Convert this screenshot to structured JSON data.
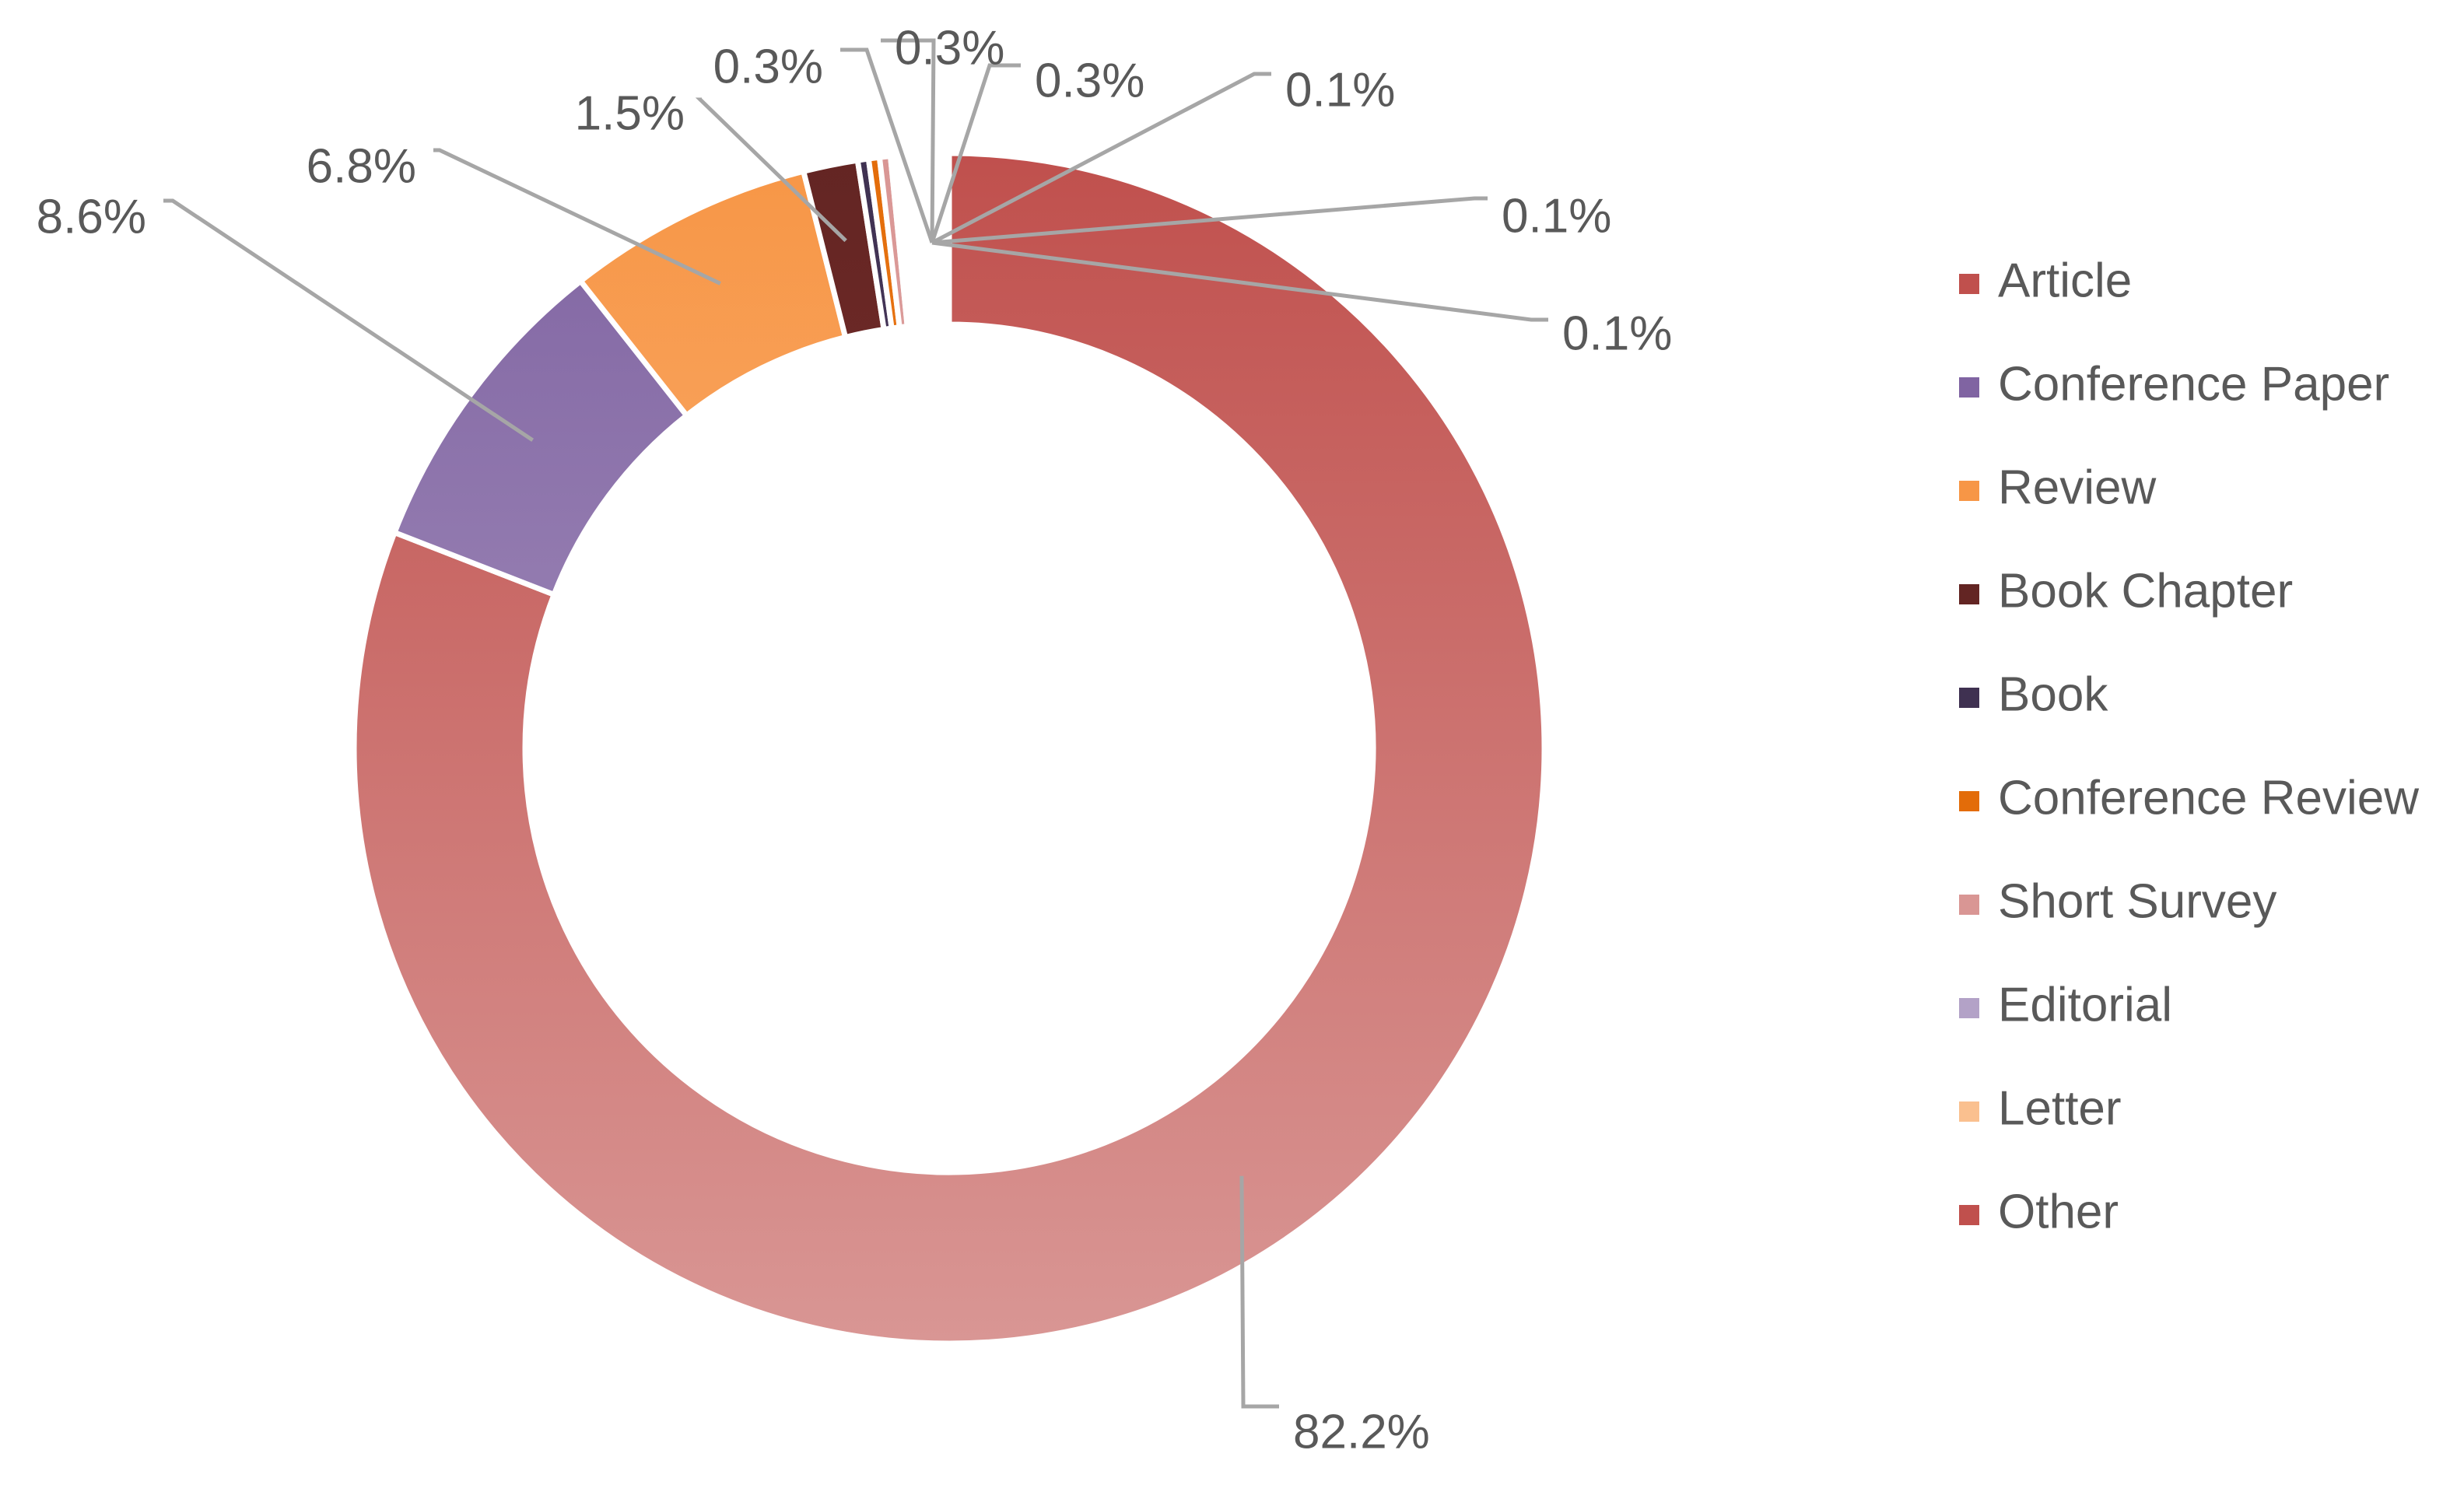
{
  "chart_data": {
    "type": "pie",
    "variant": "donut",
    "title": "",
    "categories": [
      "Article",
      "Conference Paper",
      "Review",
      "Book Chapter",
      "Book",
      "Conference Review",
      "Short Survey",
      "Editorial",
      "Letter",
      "Other"
    ],
    "slices": [
      {
        "name": "Article",
        "value": 82.2,
        "label": "82.2%",
        "color_top": "#c0504d",
        "color_bottom": "#d99694"
      },
      {
        "name": "Conference Paper",
        "value": 8.6,
        "label": "8.6%",
        "color_top": "#8064a2",
        "color_bottom": "#b3a2c7"
      },
      {
        "name": "Review",
        "value": 6.8,
        "label": "6.8%",
        "color_top": "#f79646",
        "color_bottom": "#fac08f"
      },
      {
        "name": "Book Chapter",
        "value": 1.5,
        "label": "1.5%",
        "color_top": "#632523",
        "color_bottom": "#943634"
      },
      {
        "name": "Book",
        "value": 0.3,
        "label": "0.3%",
        "color_top": "#3f3151",
        "color_bottom": "#5f497a"
      },
      {
        "name": "Conference Review",
        "value": 0.3,
        "label": "0.3%",
        "color_top": "#e36c09",
        "color_bottom": "#f79646"
      },
      {
        "name": "Short Survey",
        "value": 0.3,
        "label": "0.3%",
        "color_top": "#d99694",
        "color_bottom": "#e6b9b8"
      },
      {
        "name": "Editorial",
        "value": 0.1,
        "label": "0.1%",
        "color_top": "#b3a2c7",
        "color_bottom": "#ccc1da"
      },
      {
        "name": "Letter",
        "value": 0.1,
        "label": "0.1%",
        "color_top": "#fac08f",
        "color_bottom": "#fcd5b4"
      },
      {
        "name": "Other",
        "value": 0.1,
        "label": "0.1%",
        "color_top": "#c0504d",
        "color_bottom": "#c0504d"
      }
    ],
    "data_labels": "percent with leader lines",
    "legend": {
      "position": "right",
      "markers": "square"
    },
    "label_color": "#595959",
    "leader_color": "#a6a6a6"
  }
}
